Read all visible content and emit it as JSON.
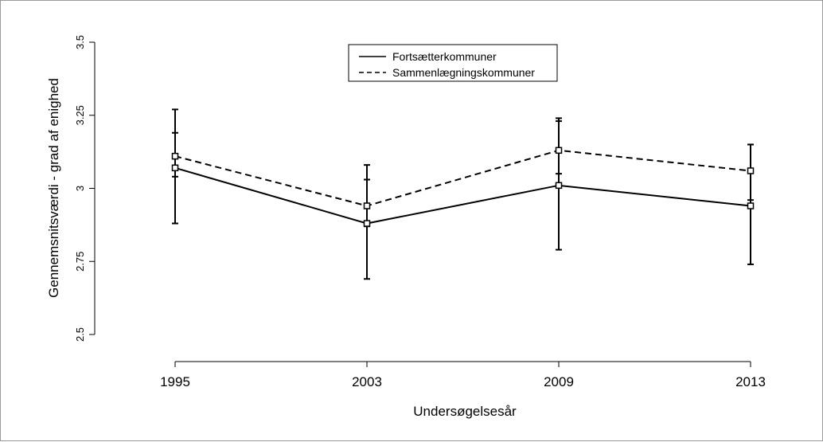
{
  "chart_data": {
    "type": "line",
    "xlabel": "Undersøgelsesår",
    "ylabel": "Gennemsnitsværdi - grad af enighed",
    "x": [
      "1995",
      "2003",
      "2009",
      "2013"
    ],
    "yticks": [
      "2.5",
      "2.75",
      "3",
      "3.25",
      "3.5"
    ],
    "ylim": [
      2.5,
      3.5
    ],
    "grid": false,
    "legend_position": "top-center",
    "series": [
      {
        "name": "Fortsætterkommuner",
        "line_style": "solid",
        "values": [
          3.07,
          2.88,
          3.01,
          2.94
        ],
        "error_low": [
          2.88,
          2.69,
          2.79,
          2.74
        ],
        "error_high": [
          3.27,
          3.03,
          3.23,
          3.15
        ]
      },
      {
        "name": "Sammenlægningskommuner",
        "line_style": "dashed",
        "values": [
          3.11,
          2.94,
          3.13,
          3.06
        ],
        "error_low": [
          3.04,
          2.87,
          3.05,
          2.96
        ],
        "error_high": [
          3.19,
          3.08,
          3.24,
          3.15
        ]
      }
    ]
  }
}
